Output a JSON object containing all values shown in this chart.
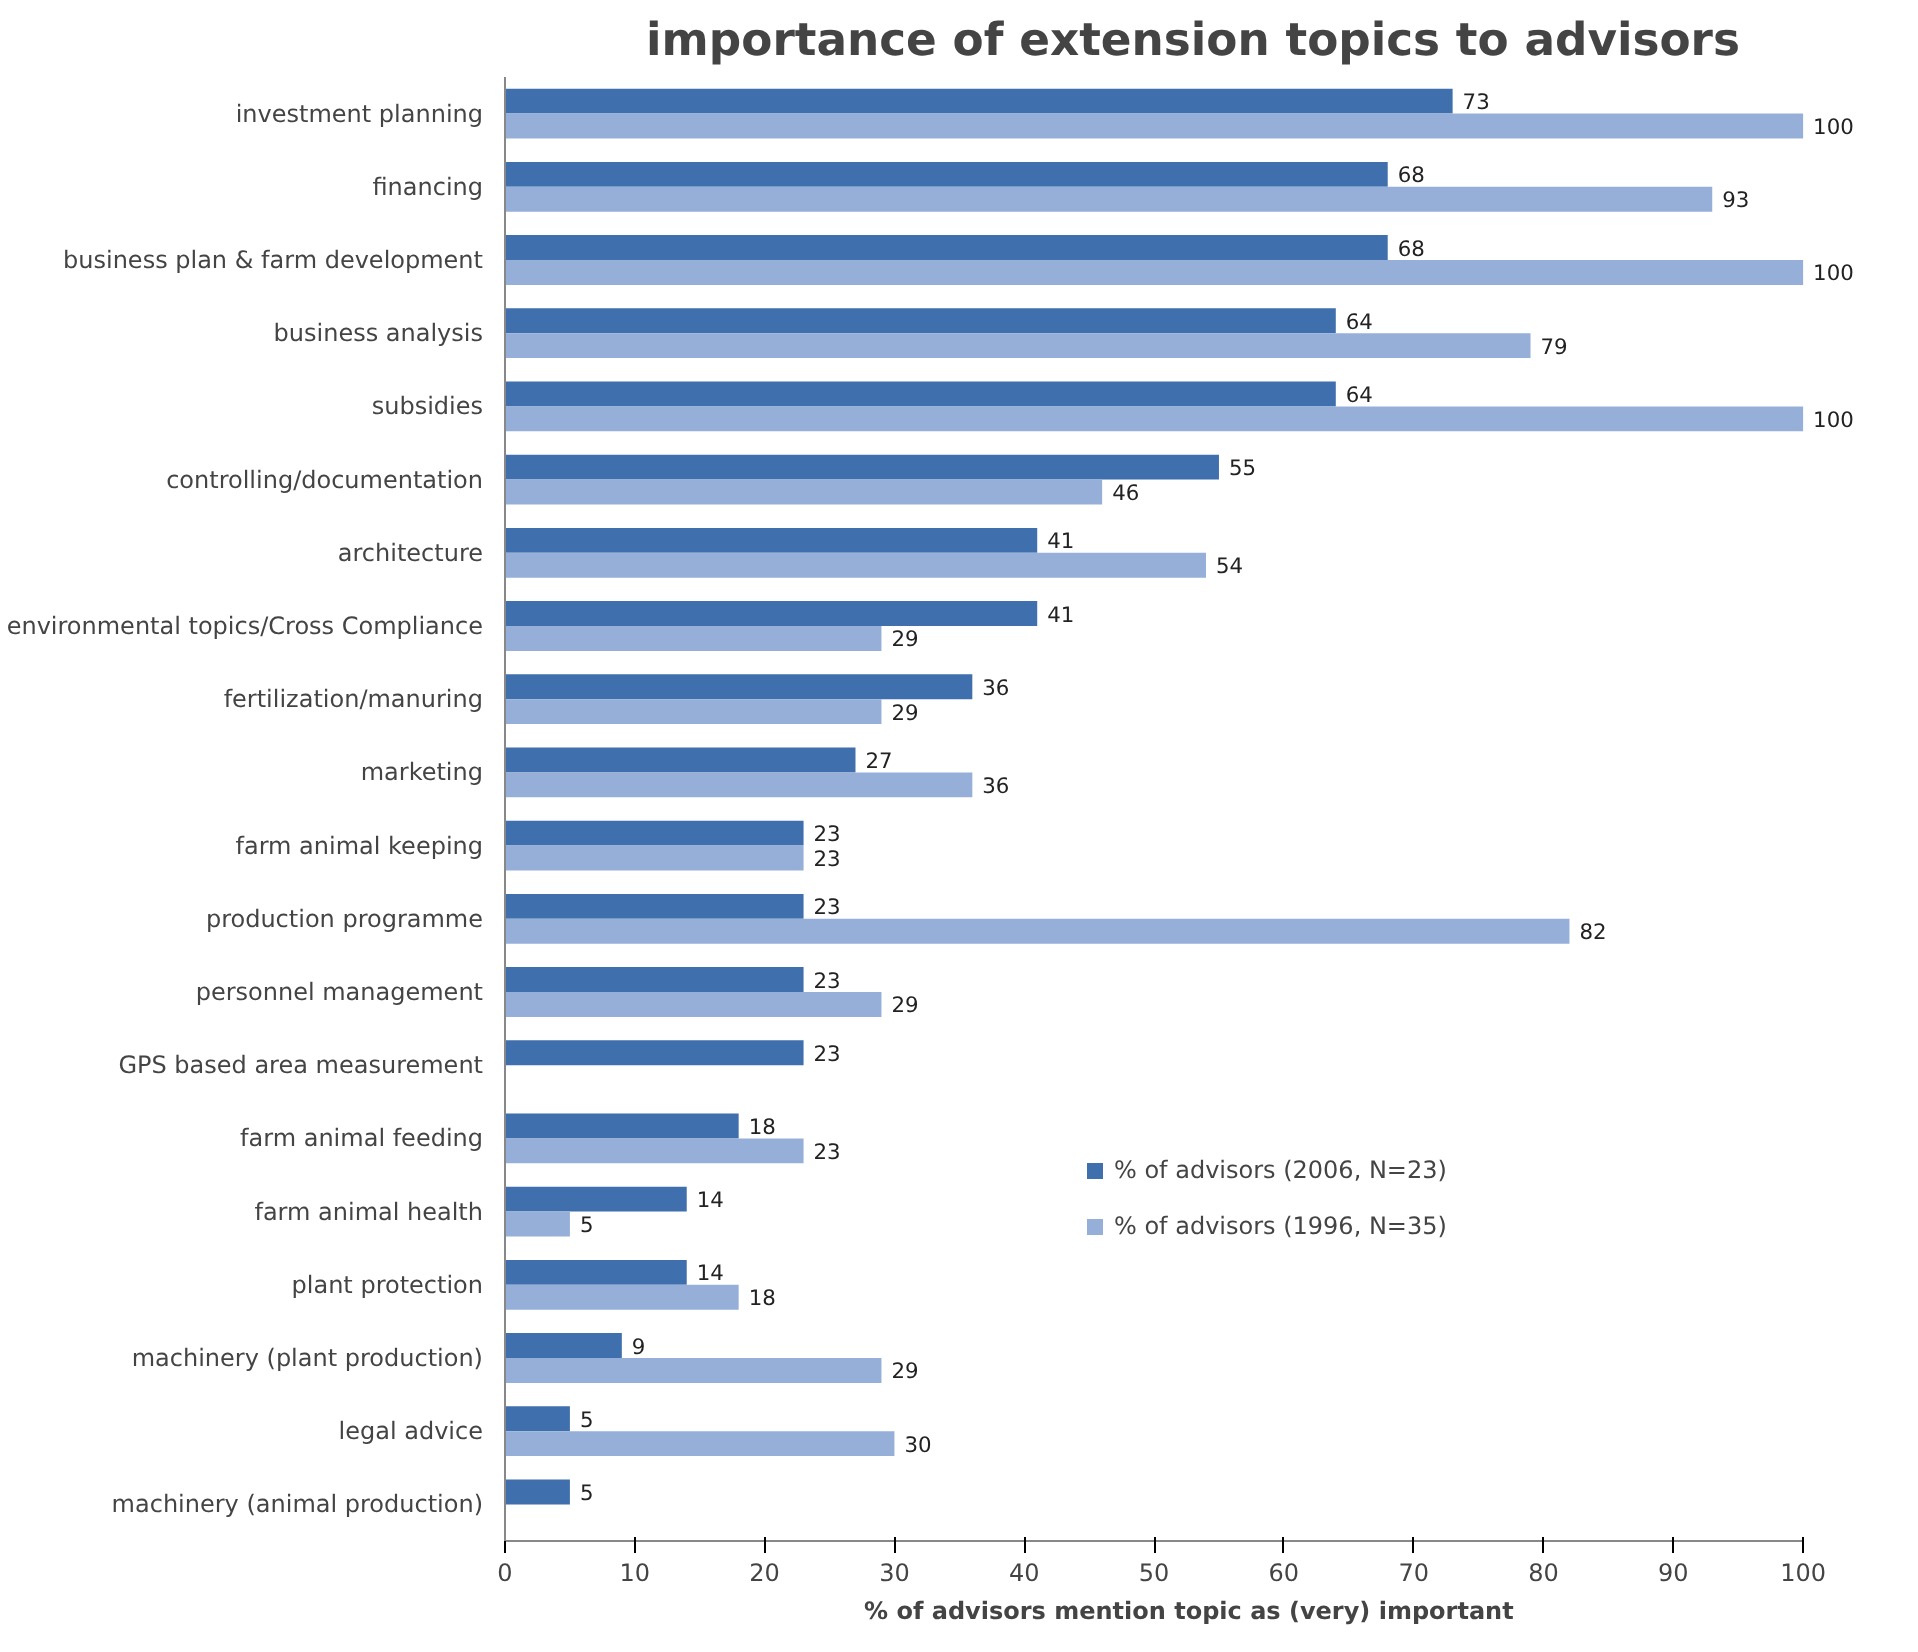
{
  "chart_data": {
    "type": "bar",
    "orientation": "horizontal",
    "title": "importance of extension topics to advisors",
    "xlabel": "% of advisors  mention topic as (very) important",
    "categories": [
      "investment planning",
      "financing",
      "business plan & farm development",
      "business analysis",
      "subsidies",
      "controlling/documentation",
      "architecture",
      "environmental topics/Cross Compliance",
      "fertilization/manuring",
      "marketing",
      "farm animal keeping",
      "production programme",
      "personnel management",
      "GPS based area measurement",
      "farm animal feeding",
      "farm animal health",
      "plant protection",
      "machinery (plant production)",
      "legal advice",
      "machinery (animal production)"
    ],
    "series": [
      {
        "name": "% of advisors (2006, N=23)",
        "color": "#3f6fac",
        "values": [
          73,
          68,
          68,
          64,
          64,
          55,
          41,
          41,
          36,
          27,
          23,
          23,
          23,
          23,
          18,
          14,
          14,
          9,
          5,
          5
        ]
      },
      {
        "name": "% of advisors (1996, N=35)",
        "color": "#95afd9",
        "values": [
          100,
          93,
          100,
          79,
          100,
          46,
          54,
          29,
          29,
          36,
          23,
          82,
          29,
          null,
          23,
          5,
          18,
          29,
          30,
          null
        ]
      }
    ],
    "xlim": [
      0,
      100
    ],
    "xticks": [
      0,
      10,
      20,
      30,
      40,
      50,
      60,
      70,
      80,
      90,
      100
    ],
    "grid": false,
    "legend": "right",
    "data_labels": true
  }
}
